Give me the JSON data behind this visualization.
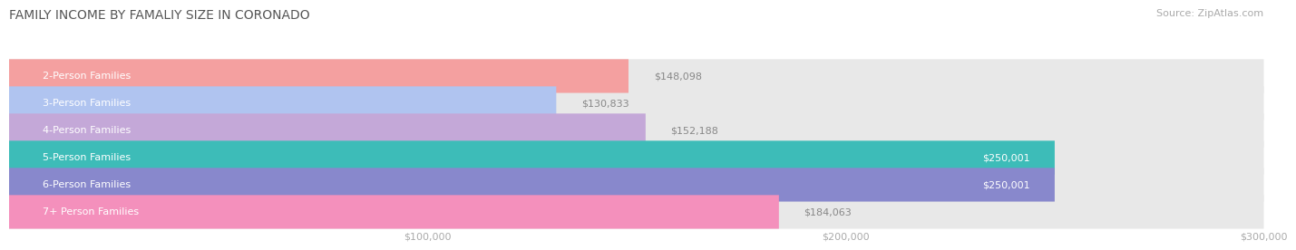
{
  "title": "FAMILY INCOME BY FAMALIY SIZE IN CORONADO",
  "source": "Source: ZipAtlas.com",
  "categories": [
    "2-Person Families",
    "3-Person Families",
    "4-Person Families",
    "5-Person Families",
    "6-Person Families",
    "7+ Person Families"
  ],
  "values": [
    148098,
    130833,
    152188,
    250001,
    250001,
    184063
  ],
  "labels": [
    "$148,098",
    "$130,833",
    "$152,188",
    "$250,001",
    "$250,001",
    "$184,063"
  ],
  "bar_colors": [
    "#f4a0a0",
    "#b0c4f0",
    "#c4a8d8",
    "#3dbcb8",
    "#8888cc",
    "#f490bc"
  ],
  "xmax": 300000,
  "xticks": [
    100000,
    200000,
    300000
  ],
  "xticklabels": [
    "$100,000",
    "$200,000",
    "$300,000"
  ],
  "background_color": "#ffffff",
  "title_fontsize": 10,
  "source_fontsize": 8,
  "label_fontsize": 8,
  "bar_height": 0.62,
  "label_color_threshold": 200000,
  "bg_bar_color": "#e8e8e8"
}
